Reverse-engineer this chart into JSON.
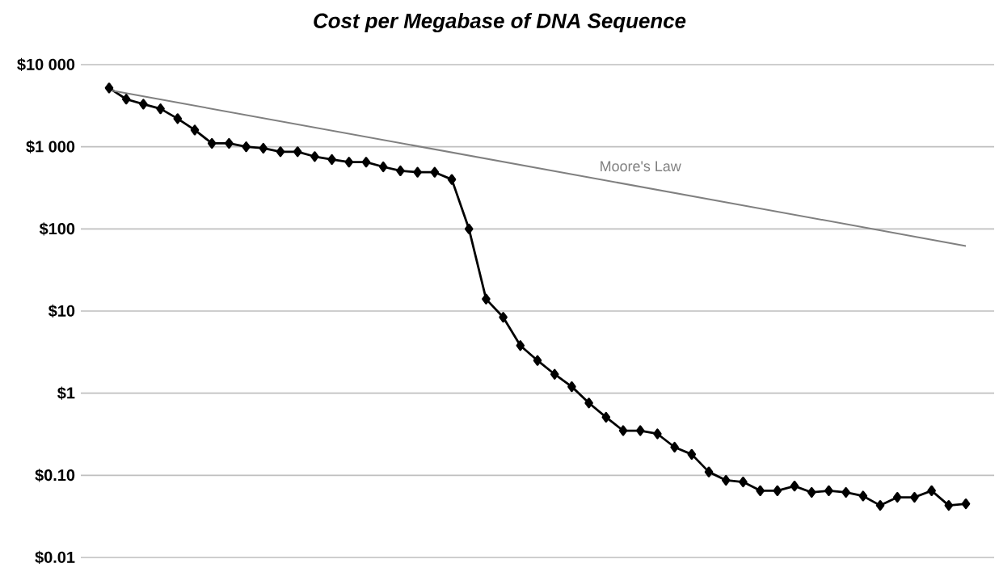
{
  "chart_data": {
    "type": "line",
    "title": "Cost per Megabase of DNA Sequence",
    "log": "y",
    "grid": "y",
    "tick_labels": "y",
    "categories": [
      null,
      null,
      null,
      null,
      null,
      null,
      null,
      null,
      null,
      null,
      null,
      null,
      null,
      null,
      null,
      null,
      null,
      null,
      null,
      null,
      null,
      null,
      null,
      null,
      null,
      null,
      null,
      null,
      null,
      null,
      null,
      null,
      null,
      null,
      null,
      null,
      null,
      null,
      null,
      null,
      null,
      null,
      null,
      null,
      null,
      null,
      null,
      null,
      null,
      null,
      null
    ],
    "ylim": [
      0.01,
      10000
    ],
    "yticks": [
      {
        "value": 10000,
        "label": "$10 000"
      },
      {
        "value": 1000,
        "label": "$1 000"
      },
      {
        "value": 100,
        "label": "$100"
      },
      {
        "value": 10,
        "label": "$10"
      },
      {
        "value": 1,
        "label": "$1"
      },
      {
        "value": 0.1,
        "label": "$0.10"
      },
      {
        "value": 0.01,
        "label": "$0.01"
      }
    ],
    "series": [
      {
        "color": "#000000",
        "marker": "diamond",
        "values": [
          5200,
          3800,
          3300,
          2900,
          2200,
          1600,
          1100,
          1100,
          1000,
          960,
          870,
          870,
          760,
          700,
          650,
          650,
          570,
          510,
          490,
          490,
          400,
          100,
          14,
          8.4,
          3.8,
          2.5,
          1.7,
          1.2,
          0.76,
          0.51,
          0.35,
          0.35,
          0.32,
          0.22,
          0.18,
          0.11,
          0.087,
          0.083,
          0.065,
          0.065,
          0.074,
          0.062,
          0.065,
          0.062,
          0.056,
          0.043,
          0.054,
          0.054,
          0.065,
          0.043,
          0.045
        ]
      },
      {
        "name": "Moore's Law",
        "color": "#808080",
        "marker": "none",
        "values": [
          4900,
          null,
          null,
          null,
          null,
          null,
          null,
          null,
          null,
          null,
          null,
          null,
          null,
          null,
          null,
          null,
          null,
          null,
          null,
          null,
          null,
          null,
          null,
          null,
          null,
          null,
          null,
          null,
          null,
          null,
          null,
          null,
          null,
          null,
          null,
          null,
          null,
          null,
          null,
          null,
          null,
          null,
          null,
          null,
          null,
          null,
          null,
          null,
          null,
          null,
          62
        ]
      }
    ]
  }
}
